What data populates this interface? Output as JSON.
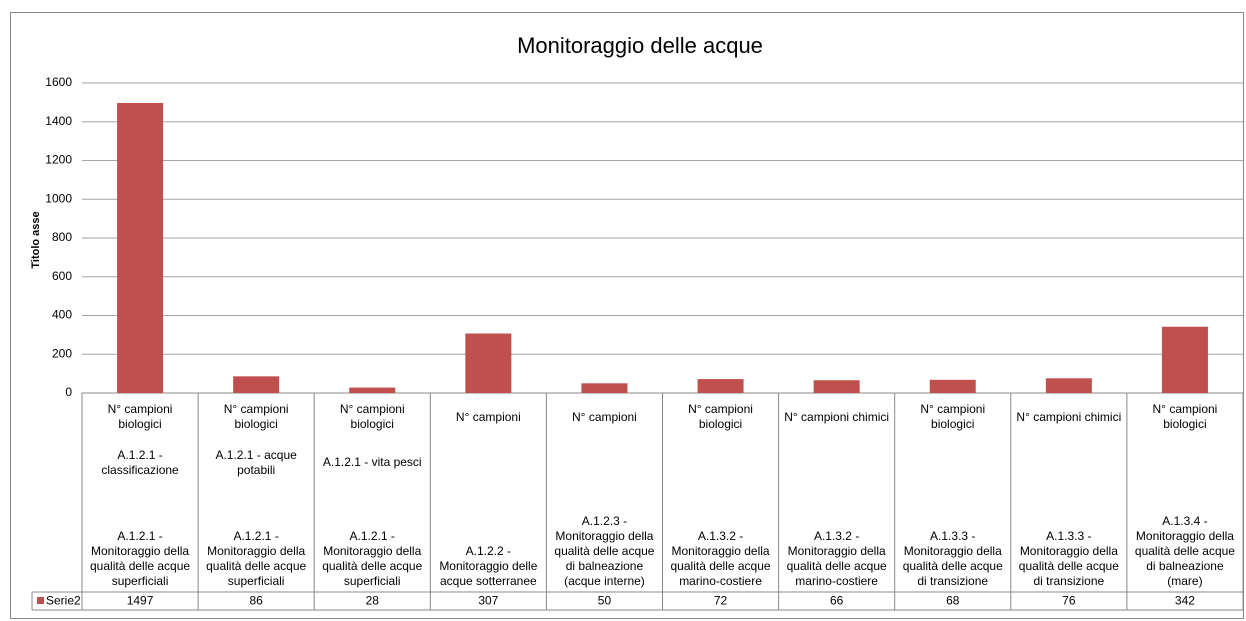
{
  "chart_data": {
    "type": "bar",
    "title": "Monitoraggio delle acque",
    "y_label": "Titolo asse",
    "categories": [
      [
        "N° campioni biologici",
        "A.1.2.1 - classificazione",
        "A.1.2.1 - Monitoraggio della qualità delle acque superficiali"
      ],
      [
        "N° campioni biologici",
        "A.1.2.1 - acque potabili",
        "A.1.2.1 - Monitoraggio della qualità delle acque superficiali"
      ],
      [
        "N° campioni biologici",
        "A.1.2.1 - vita pesci",
        "A.1.2.1 - Monitoraggio della qualità delle acque superficiali"
      ],
      [
        "N° campioni",
        null,
        "A.1.2.2 - Monitoraggio delle acque sotterranee"
      ],
      [
        "N° campioni",
        null,
        "A.1.2.3 - Monitoraggio della qualità delle acque di balneazione (acque interne)"
      ],
      [
        "N° campioni biologici",
        null,
        "A.1.3.2 - Monitoraggio della qualità delle acque marino-costiere"
      ],
      [
        "N° campioni chimici",
        null,
        "A.1.3.2 - Monitoraggio della qualità delle acque marino-costiere"
      ],
      [
        "N° campioni biologici",
        null,
        "A.1.3.3 - Monitoraggio della qualità delle acque di transizione"
      ],
      [
        "N° campioni chimici",
        null,
        "A.1.3.3 - Monitoraggio della qualità delle acque di transizione"
      ],
      [
        "N° campioni biologici",
        null,
        "A.1.3.4 - Monitoraggio della qualità delle acque di balneazione (mare)"
      ]
    ],
    "series": [
      {
        "name": "Serie2",
        "color": "#c0504d",
        "values": [
          1497,
          86,
          28,
          307,
          50,
          72,
          66,
          68,
          76,
          342
        ]
      }
    ],
    "ylim": [
      0,
      1600
    ],
    "yticks": [
      0,
      200,
      400,
      600,
      800,
      1000,
      1200,
      1400,
      1600
    ],
    "grid": true
  }
}
